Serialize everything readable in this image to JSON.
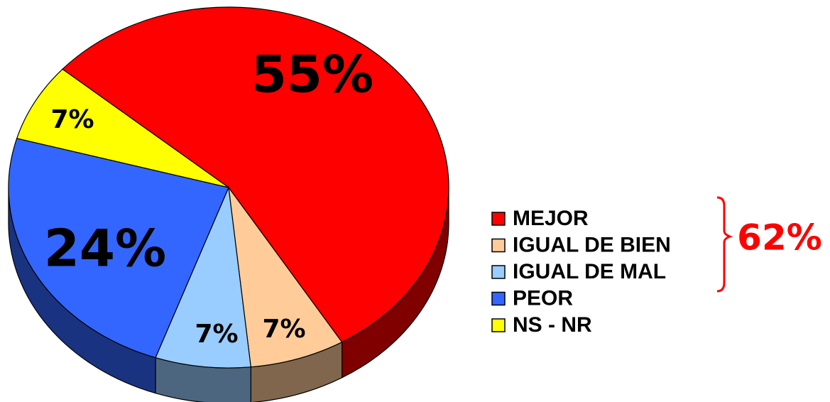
{
  "chart_data": {
    "type": "pie",
    "categories": [
      "MEJOR",
      "IGUAL DE BIEN",
      "IGUAL DE MAL",
      "PEOR",
      "NS - NR"
    ],
    "values": [
      55,
      7,
      7,
      24,
      7
    ],
    "value_labels": [
      "55%",
      "7%",
      "7%",
      "24%",
      "7%"
    ],
    "colors": [
      "#ff0000",
      "#ffcc99",
      "#99ccff",
      "#3366ff",
      "#ffff00"
    ],
    "annotation": "62%",
    "legend": "right"
  }
}
